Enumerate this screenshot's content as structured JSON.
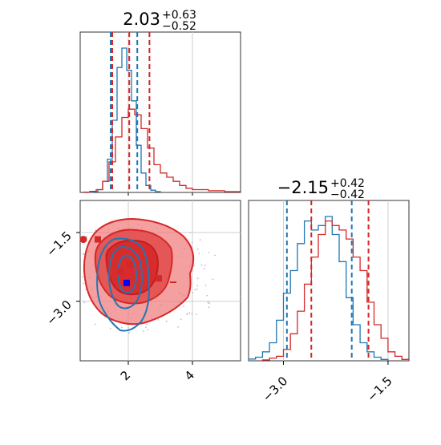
{
  "chart_data": [
    {
      "type": "histogram",
      "panel": "top-left",
      "title": {
        "value": "2.03",
        "plus": "+0.63",
        "minus": "−0.52"
      },
      "xlim": [
        0.5,
        5.5
      ],
      "grid": true,
      "series": [
        {
          "color": "#1f77b4",
          "bins": [
            0.6,
            0.75,
            0.9,
            1.05,
            1.2,
            1.35,
            1.5,
            1.65,
            1.8,
            1.95,
            2.1,
            2.25,
            2.4,
            2.55,
            2.7,
            2.85,
            3.0
          ],
          "heights": [
            0,
            1,
            3,
            10,
            40,
            120,
            260,
            450,
            520,
            440,
            330,
            170,
            70,
            25,
            8,
            3,
            1
          ],
          "quantile_lines": [
            1.45,
            2.28
          ]
        },
        {
          "color": "#d62728",
          "bins": [
            0.6,
            0.8,
            1.0,
            1.2,
            1.4,
            1.6,
            1.8,
            2.0,
            2.2,
            2.4,
            2.6,
            2.8,
            3.0,
            3.2,
            3.4,
            3.6,
            3.8,
            4.0,
            4.5,
            5.0,
            5.5
          ],
          "heights": [
            1,
            4,
            10,
            40,
            110,
            200,
            270,
            300,
            280,
            230,
            160,
            100,
            70,
            55,
            40,
            25,
            15,
            10,
            6,
            3,
            1
          ],
          "quantile_lines": [
            1.5,
            2.03,
            2.66
          ]
        }
      ]
    },
    {
      "type": "contour",
      "panel": "bottom-left",
      "xlim": [
        0.5,
        5.5
      ],
      "ylim": [
        -4.3,
        -0.8
      ],
      "xticks": [
        2,
        4
      ],
      "yticks": [
        -1.5,
        -3.0
      ],
      "grid": true,
      "markers": [
        {
          "x": 0.6,
          "y": -1.65,
          "color": "#d62728",
          "shape": "circle"
        },
        {
          "x": 1.05,
          "y": -1.65,
          "color": "#d62728",
          "shape": "square"
        },
        {
          "x": 1.75,
          "y": -2.35,
          "color": "#d62728",
          "shape": "square"
        },
        {
          "x": 2.05,
          "y": -2.2,
          "color": "#d62728",
          "shape": "square"
        },
        {
          "x": 2.95,
          "y": -2.5,
          "color": "#d62728",
          "shape": "square"
        },
        {
          "x": 1.95,
          "y": -2.6,
          "color": "#0000ff",
          "shape": "square"
        }
      ]
    },
    {
      "type": "histogram",
      "panel": "bottom-right",
      "title": {
        "value": "−2.15",
        "plus": "+0.42",
        "minus": "−0.42"
      },
      "xlim": [
        -3.5,
        -1.2
      ],
      "xticks": [
        -3.0,
        -1.5
      ],
      "grid": true,
      "series": [
        {
          "color": "#1f77b4",
          "bins": [
            -3.5,
            -3.4,
            -3.3,
            -3.2,
            -3.1,
            -3.0,
            -2.9,
            -2.8,
            -2.7,
            -2.6,
            -2.5,
            -2.4,
            -2.3,
            -2.2,
            -2.1,
            -2.0,
            -1.9,
            -1.8,
            -1.7,
            -1.6,
            -1.5
          ],
          "heights": [
            4,
            8,
            20,
            40,
            90,
            150,
            200,
            260,
            310,
            290,
            300,
            320,
            280,
            220,
            140,
            80,
            40,
            20,
            8,
            3
          ],
          "quantile_lines": [
            -2.95,
            -2.02
          ]
        },
        {
          "color": "#d62728",
          "bins": [
            -3.3,
            -3.2,
            -3.1,
            -3.0,
            -2.9,
            -2.8,
            -2.7,
            -2.6,
            -2.5,
            -2.4,
            -2.3,
            -2.2,
            -2.1,
            -2.0,
            -1.9,
            -1.8,
            -1.7,
            -1.6,
            -1.5,
            -1.4,
            -1.3,
            -1.2
          ],
          "heights": [
            2,
            6,
            10,
            25,
            60,
            110,
            170,
            230,
            280,
            310,
            300,
            290,
            270,
            230,
            200,
            130,
            80,
            50,
            20,
            10,
            3
          ],
          "quantile_lines": [
            -2.6,
            -1.78
          ]
        }
      ]
    }
  ],
  "colors": {
    "blue": "#1f77b4",
    "red": "#d62728",
    "grid": "#cfcfcf",
    "scatter": "#bbbbdd"
  }
}
